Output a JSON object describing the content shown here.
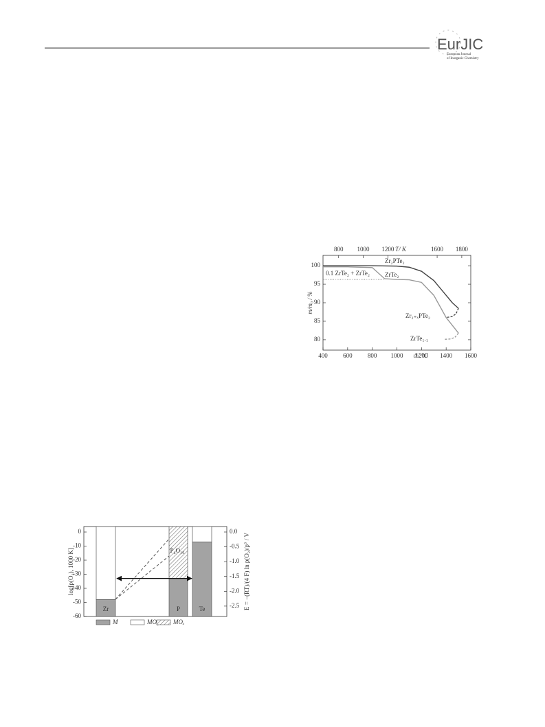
{
  "header": {
    "logo": "EurJIC",
    "subtitle_line1": "European Journal",
    "subtitle_line2": "of Inorganic Chemistry"
  },
  "chart_data": [
    {
      "type": "line",
      "xlabel": "ϑ / °C",
      "x2label": "T/ K",
      "ylabel": "m/m₀ / %",
      "xlim": [
        400,
        1600
      ],
      "xticks": [
        400,
        600,
        800,
        1000,
        1200,
        1400,
        1600
      ],
      "x2lim": [
        673.15,
        1873.15
      ],
      "x2ticks": [
        800,
        1000,
        1200,
        1600,
        1800
      ],
      "ylim": [
        77.2,
        102.8
      ],
      "yticks": [
        80,
        85,
        90,
        95,
        100
      ],
      "series": [
        {
          "color": "#444444",
          "dash": "solid",
          "x": [
            400,
            600,
            800,
            1000,
            1100,
            1200,
            1300,
            1400,
            1450,
            1500
          ],
          "values": [
            100,
            100,
            100,
            99.9,
            99.6,
            98.5,
            96,
            92,
            90,
            88.5
          ]
        },
        {
          "color": "#444444",
          "dash": "dashed",
          "x": [
            1500,
            1480,
            1450,
            1400
          ],
          "values": [
            88.5,
            87,
            86.3,
            86
          ]
        },
        {
          "color": "#999999",
          "dash": "solid",
          "x": [
            400,
            600,
            800,
            850,
            900,
            1000,
            1100,
            1200,
            1300,
            1400,
            1500
          ],
          "values": [
            99.7,
            99.7,
            99.5,
            98,
            96.5,
            96.3,
            96.2,
            95.5,
            92,
            86,
            81.8
          ]
        },
        {
          "color": "#999999",
          "dash": "dashed",
          "x": [
            1500,
            1470,
            1430,
            1380
          ],
          "values": [
            81.8,
            80.6,
            80.2,
            80.1
          ]
        },
        {
          "color": "#777777",
          "dash": "dotted",
          "x": [
            400,
            900
          ],
          "values": [
            96.3,
            96.3
          ]
        }
      ],
      "annotations": [
        "Zr₂PTe₂",
        "0.1 ZrTe₂ + ZrTe₂",
        "ZrTe₂",
        "Zr₂₊ₓPTe₂",
        "ZrTe₁.₁"
      ]
    },
    {
      "type": "bar",
      "ylabel": "log[p(O₂), 1000 K]",
      "y2label": "E = −(RT)/(4 F) ln p(O₂)/p° / V",
      "categories": [
        "Zr",
        "P",
        "Te"
      ],
      "ylim": [
        -60,
        3.9
      ],
      "yticks": [
        0,
        -10,
        -20,
        -30,
        -40,
        -50,
        -60
      ],
      "y2lim": [
        -2.85,
        0.185
      ],
      "y2ticks": [
        {
          "value": 0,
          "label": "0.0"
        },
        -0.5,
        {
          "value": -1,
          "label": "-1.0"
        },
        -1.5,
        {
          "value": -2,
          "label": "-2.0"
        },
        -2.5
      ],
      "series": [
        {
          "name": "M",
          "color": "#a3a3a3",
          "values": [
            -48,
            -33,
            -7
          ]
        },
        {
          "name": "MO₂",
          "color": "#ffffff",
          "values": [
            -48,
            null,
            -7
          ]
        },
        {
          "name": "MOₓ",
          "color": "hatch",
          "values": [
            null,
            -33,
            null
          ]
        }
      ],
      "annotations": [
        "P₄O₁₀"
      ]
    }
  ]
}
